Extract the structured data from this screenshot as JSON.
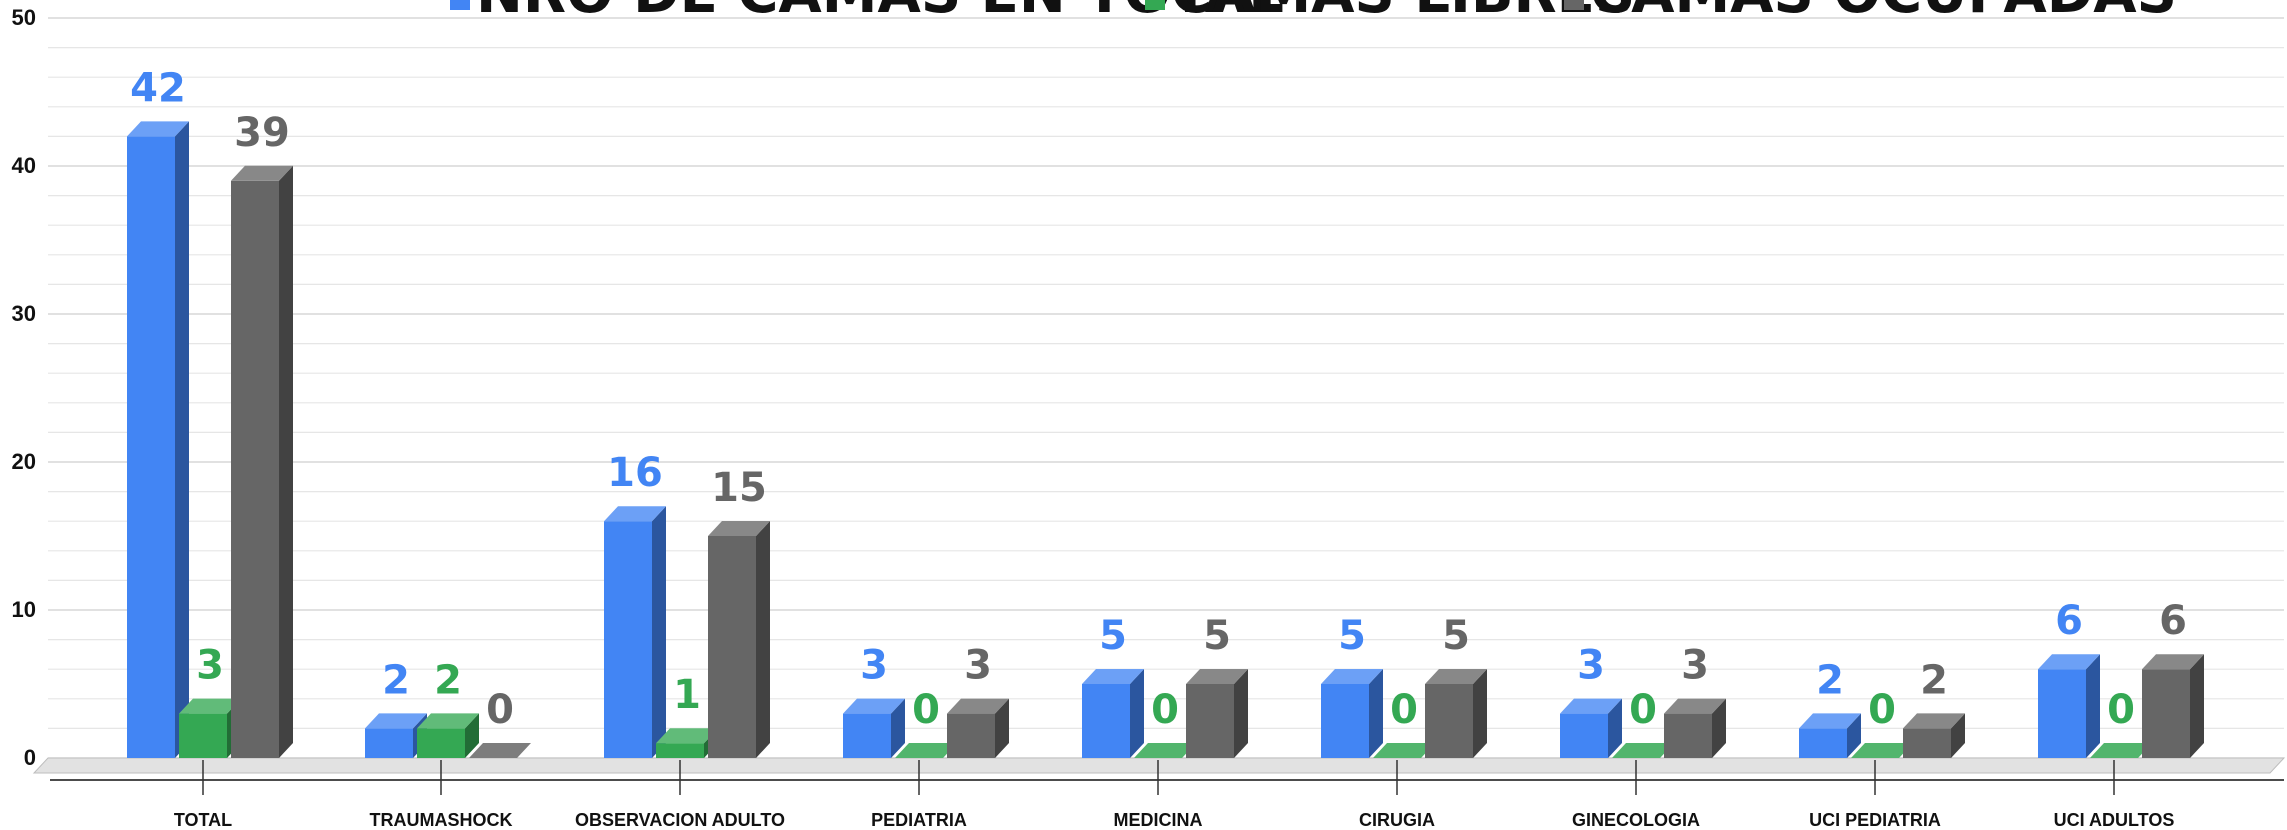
{
  "chart_data": {
    "type": "bar",
    "categories": [
      "TOTAL",
      "TRAUMASHOCK",
      "OBSERVACION ADULTO",
      "PEDIATRIA",
      "MEDICINA",
      "CIRUGIA",
      "GINECOLOGIA",
      "UCI PEDIATRIA",
      "UCI ADULTOS"
    ],
    "series": [
      {
        "name": "NRO DE CAMAS EN TOTAL",
        "values": [
          42,
          2,
          16,
          3,
          5,
          5,
          3,
          2,
          6
        ],
        "color": "#4285f4"
      },
      {
        "name": "CAMAS LIBRES",
        "values": [
          3,
          2,
          1,
          0,
          0,
          0,
          0,
          0,
          0
        ],
        "color": "#34a853"
      },
      {
        "name": "CAMAS OCUPADAS",
        "values": [
          39,
          0,
          15,
          3,
          5,
          5,
          3,
          2,
          6
        ],
        "color": "#666666"
      }
    ],
    "y_ticks": [
      "0",
      "10",
      "20",
      "30",
      "40",
      "50"
    ],
    "ylim": [
      0,
      50
    ],
    "grid": true,
    "legend_position": "top",
    "style": "3d-column"
  }
}
